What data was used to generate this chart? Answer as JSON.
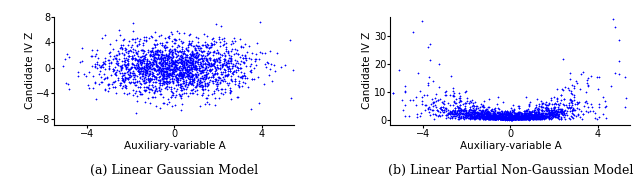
{
  "seed": 42,
  "n_points": 2000,
  "dot_color": "#0000FF",
  "dot_size": 2.0,
  "dot_marker": "+",
  "plot1": {
    "xlabel": "Auxiliary-variable A",
    "ylabel": "Candidate IV Z",
    "xlim": [
      -5.5,
      5.5
    ],
    "ylim": [
      -9,
      8
    ],
    "xticks": [
      -4,
      0,
      4
    ],
    "yticks": [
      -8,
      -4,
      0,
      4,
      8
    ],
    "caption": "(a) Linear Gaussian Model",
    "x_std": 1.7,
    "y_std": 2.2,
    "corr": 0.0
  },
  "plot2": {
    "xlabel": "Auxiliary-variable A",
    "ylabel": "Candidate IV Z",
    "xlim": [
      -5.5,
      5.5
    ],
    "ylim": [
      -2,
      37
    ],
    "xticks": [
      -4,
      0,
      4
    ],
    "yticks": [
      0,
      10,
      20,
      30
    ],
    "caption": "(b) Linear Partial Non-Gaussian Model",
    "x_std": 1.7
  },
  "caption_fontsize": 9,
  "axis_label_fontsize": 7.5,
  "tick_fontsize": 7
}
